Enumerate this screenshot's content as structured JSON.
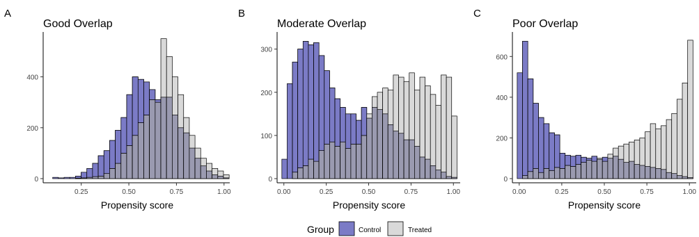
{
  "figure": {
    "legend": {
      "title": "Group",
      "items": [
        "Control",
        "Treated"
      ]
    },
    "colors": {
      "control": "#7b7bc6",
      "treated": "#d9d9d9",
      "overlap": "#9a9ab0",
      "edge": "#000000"
    }
  },
  "chart_data": [
    {
      "type": "bar",
      "panel_letter": "A",
      "title": "Good Overlap",
      "xlabel": "Propensity score",
      "ylabel": "",
      "xlim": [
        0.05,
        1.03
      ],
      "ylim": [
        0,
        560
      ],
      "xticks": [
        0.25,
        0.5,
        0.75,
        1.0
      ],
      "xtick_labels": [
        "0.25",
        "0.50",
        "0.75",
        "1.00"
      ],
      "yticks": [
        0,
        200,
        400
      ],
      "ytick_labels": [
        "0",
        "200",
        "400"
      ],
      "bin_start": 0.1,
      "bin_width": 0.0299,
      "series": [
        {
          "name": "Control",
          "values": [
            5,
            3,
            5,
            5,
            10,
            25,
            40,
            60,
            90,
            110,
            150,
            190,
            240,
            330,
            400,
            390,
            380,
            350,
            310,
            320,
            320,
            250,
            200,
            180,
            120,
            80,
            50,
            30,
            15,
            10,
            3
          ]
        },
        {
          "name": "Treated",
          "values": [
            0,
            0,
            0,
            0,
            2,
            3,
            5,
            8,
            10,
            20,
            40,
            60,
            100,
            130,
            170,
            220,
            250,
            310,
            300,
            550,
            480,
            400,
            330,
            240,
            170,
            120,
            80,
            60,
            40,
            30,
            15
          ]
        }
      ]
    },
    {
      "type": "bar",
      "panel_letter": "B",
      "title": "Moderate Overlap",
      "xlabel": "Propensity score",
      "ylabel": "",
      "xlim": [
        -0.04,
        1.04
      ],
      "ylim": [
        0,
        330
      ],
      "xticks": [
        0.0,
        0.25,
        0.5,
        0.75,
        1.0
      ],
      "xtick_labels": [
        "0.00",
        "0.25",
        "0.50",
        "0.75",
        "1.00"
      ],
      "yticks": [
        0,
        100,
        200,
        300
      ],
      "ytick_labels": [
        "0",
        "100",
        "200",
        "300"
      ],
      "bin_start": -0.012,
      "bin_width": 0.0313,
      "series": [
        {
          "name": "Control",
          "values": [
            45,
            220,
            270,
            300,
            318,
            310,
            315,
            285,
            250,
            210,
            185,
            165,
            150,
            150,
            135,
            165,
            140,
            165,
            160,
            150,
            125,
            110,
            105,
            90,
            90,
            75,
            50,
            45,
            30,
            20,
            15,
            5,
            3
          ]
        },
        {
          "name": "Treated",
          "values": [
            0,
            0,
            15,
            25,
            30,
            45,
            40,
            65,
            80,
            85,
            75,
            85,
            70,
            80,
            80,
            100,
            150,
            190,
            200,
            210,
            205,
            240,
            235,
            225,
            245,
            205,
            235,
            215,
            195,
            170,
            240,
            235,
            145
          ]
        }
      ]
    },
    {
      "type": "bar",
      "panel_letter": "C",
      "title": "Poor Overlap",
      "xlabel": "Propensity score",
      "ylabel": "",
      "xlim": [
        -0.04,
        1.04
      ],
      "ylim": [
        0,
        700
      ],
      "xticks": [
        0.0,
        0.25,
        0.5,
        0.75,
        1.0
      ],
      "xtick_labels": [
        "0.00",
        "0.25",
        "0.50",
        "0.75",
        "1.00"
      ],
      "yticks": [
        0,
        200,
        400,
        600
      ],
      "ytick_labels": [
        "0",
        "200",
        "400",
        "600"
      ],
      "bin_start": -0.012,
      "bin_width": 0.0313,
      "series": [
        {
          "name": "Control",
          "values": [
            520,
            675,
            490,
            370,
            300,
            270,
            225,
            215,
            125,
            115,
            110,
            115,
            105,
            100,
            110,
            95,
            105,
            100,
            110,
            95,
            80,
            85,
            70,
            65,
            60,
            55,
            50,
            45,
            30,
            25,
            15,
            10,
            5
          ]
        },
        {
          "name": "Treated",
          "values": [
            0,
            15,
            35,
            50,
            30,
            50,
            40,
            55,
            50,
            65,
            60,
            70,
            80,
            90,
            85,
            100,
            85,
            120,
            150,
            160,
            170,
            180,
            190,
            200,
            230,
            270,
            245,
            260,
            290,
            320,
            390,
            470,
            680
          ]
        }
      ]
    }
  ]
}
